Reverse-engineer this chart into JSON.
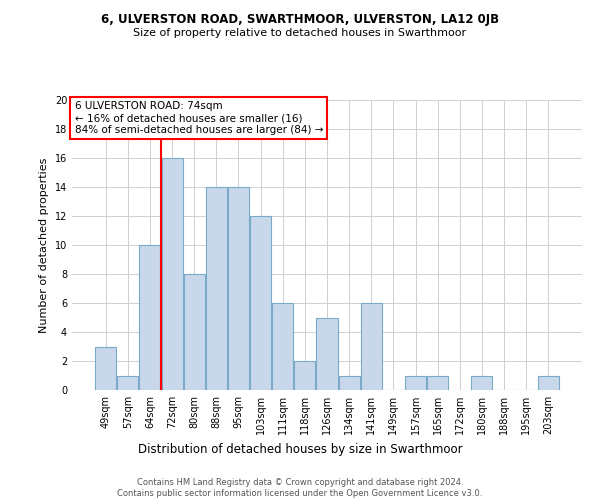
{
  "title1": "6, ULVERSTON ROAD, SWARTHMOOR, ULVERSTON, LA12 0JB",
  "title2": "Size of property relative to detached houses in Swarthmoor",
  "xlabel": "Distribution of detached houses by size in Swarthmoor",
  "ylabel": "Number of detached properties",
  "categories": [
    "49sqm",
    "57sqm",
    "64sqm",
    "72sqm",
    "80sqm",
    "88sqm",
    "95sqm",
    "103sqm",
    "111sqm",
    "118sqm",
    "126sqm",
    "134sqm",
    "141sqm",
    "149sqm",
    "157sqm",
    "165sqm",
    "172sqm",
    "180sqm",
    "188sqm",
    "195sqm",
    "203sqm"
  ],
  "values": [
    3,
    1,
    10,
    16,
    8,
    14,
    14,
    12,
    6,
    2,
    5,
    1,
    6,
    0,
    1,
    1,
    0,
    1,
    0,
    0,
    1
  ],
  "bar_color": "#c8d8ea",
  "bar_edge_color": "#7aaac8",
  "highlight_line_index": 3,
  "highlight_line_color": "red",
  "annotation_box_text": "6 ULVERSTON ROAD: 74sqm\n← 16% of detached houses are smaller (16)\n84% of semi-detached houses are larger (84) →",
  "annotation_box_color": "red",
  "ylim": [
    0,
    20
  ],
  "yticks": [
    0,
    2,
    4,
    6,
    8,
    10,
    12,
    14,
    16,
    18,
    20
  ],
  "footer_line1": "Contains HM Land Registry data © Crown copyright and database right 2024.",
  "footer_line2": "Contains public sector information licensed under the Open Government Licence v3.0.",
  "background_color": "#ffffff",
  "grid_color": "#d0d0d0",
  "title1_fontsize": 8.5,
  "title2_fontsize": 8.0,
  "ylabel_fontsize": 8.0,
  "xlabel_fontsize": 8.5,
  "tick_fontsize": 7.0,
  "annotation_fontsize": 7.5,
  "footer_fontsize": 6.0
}
